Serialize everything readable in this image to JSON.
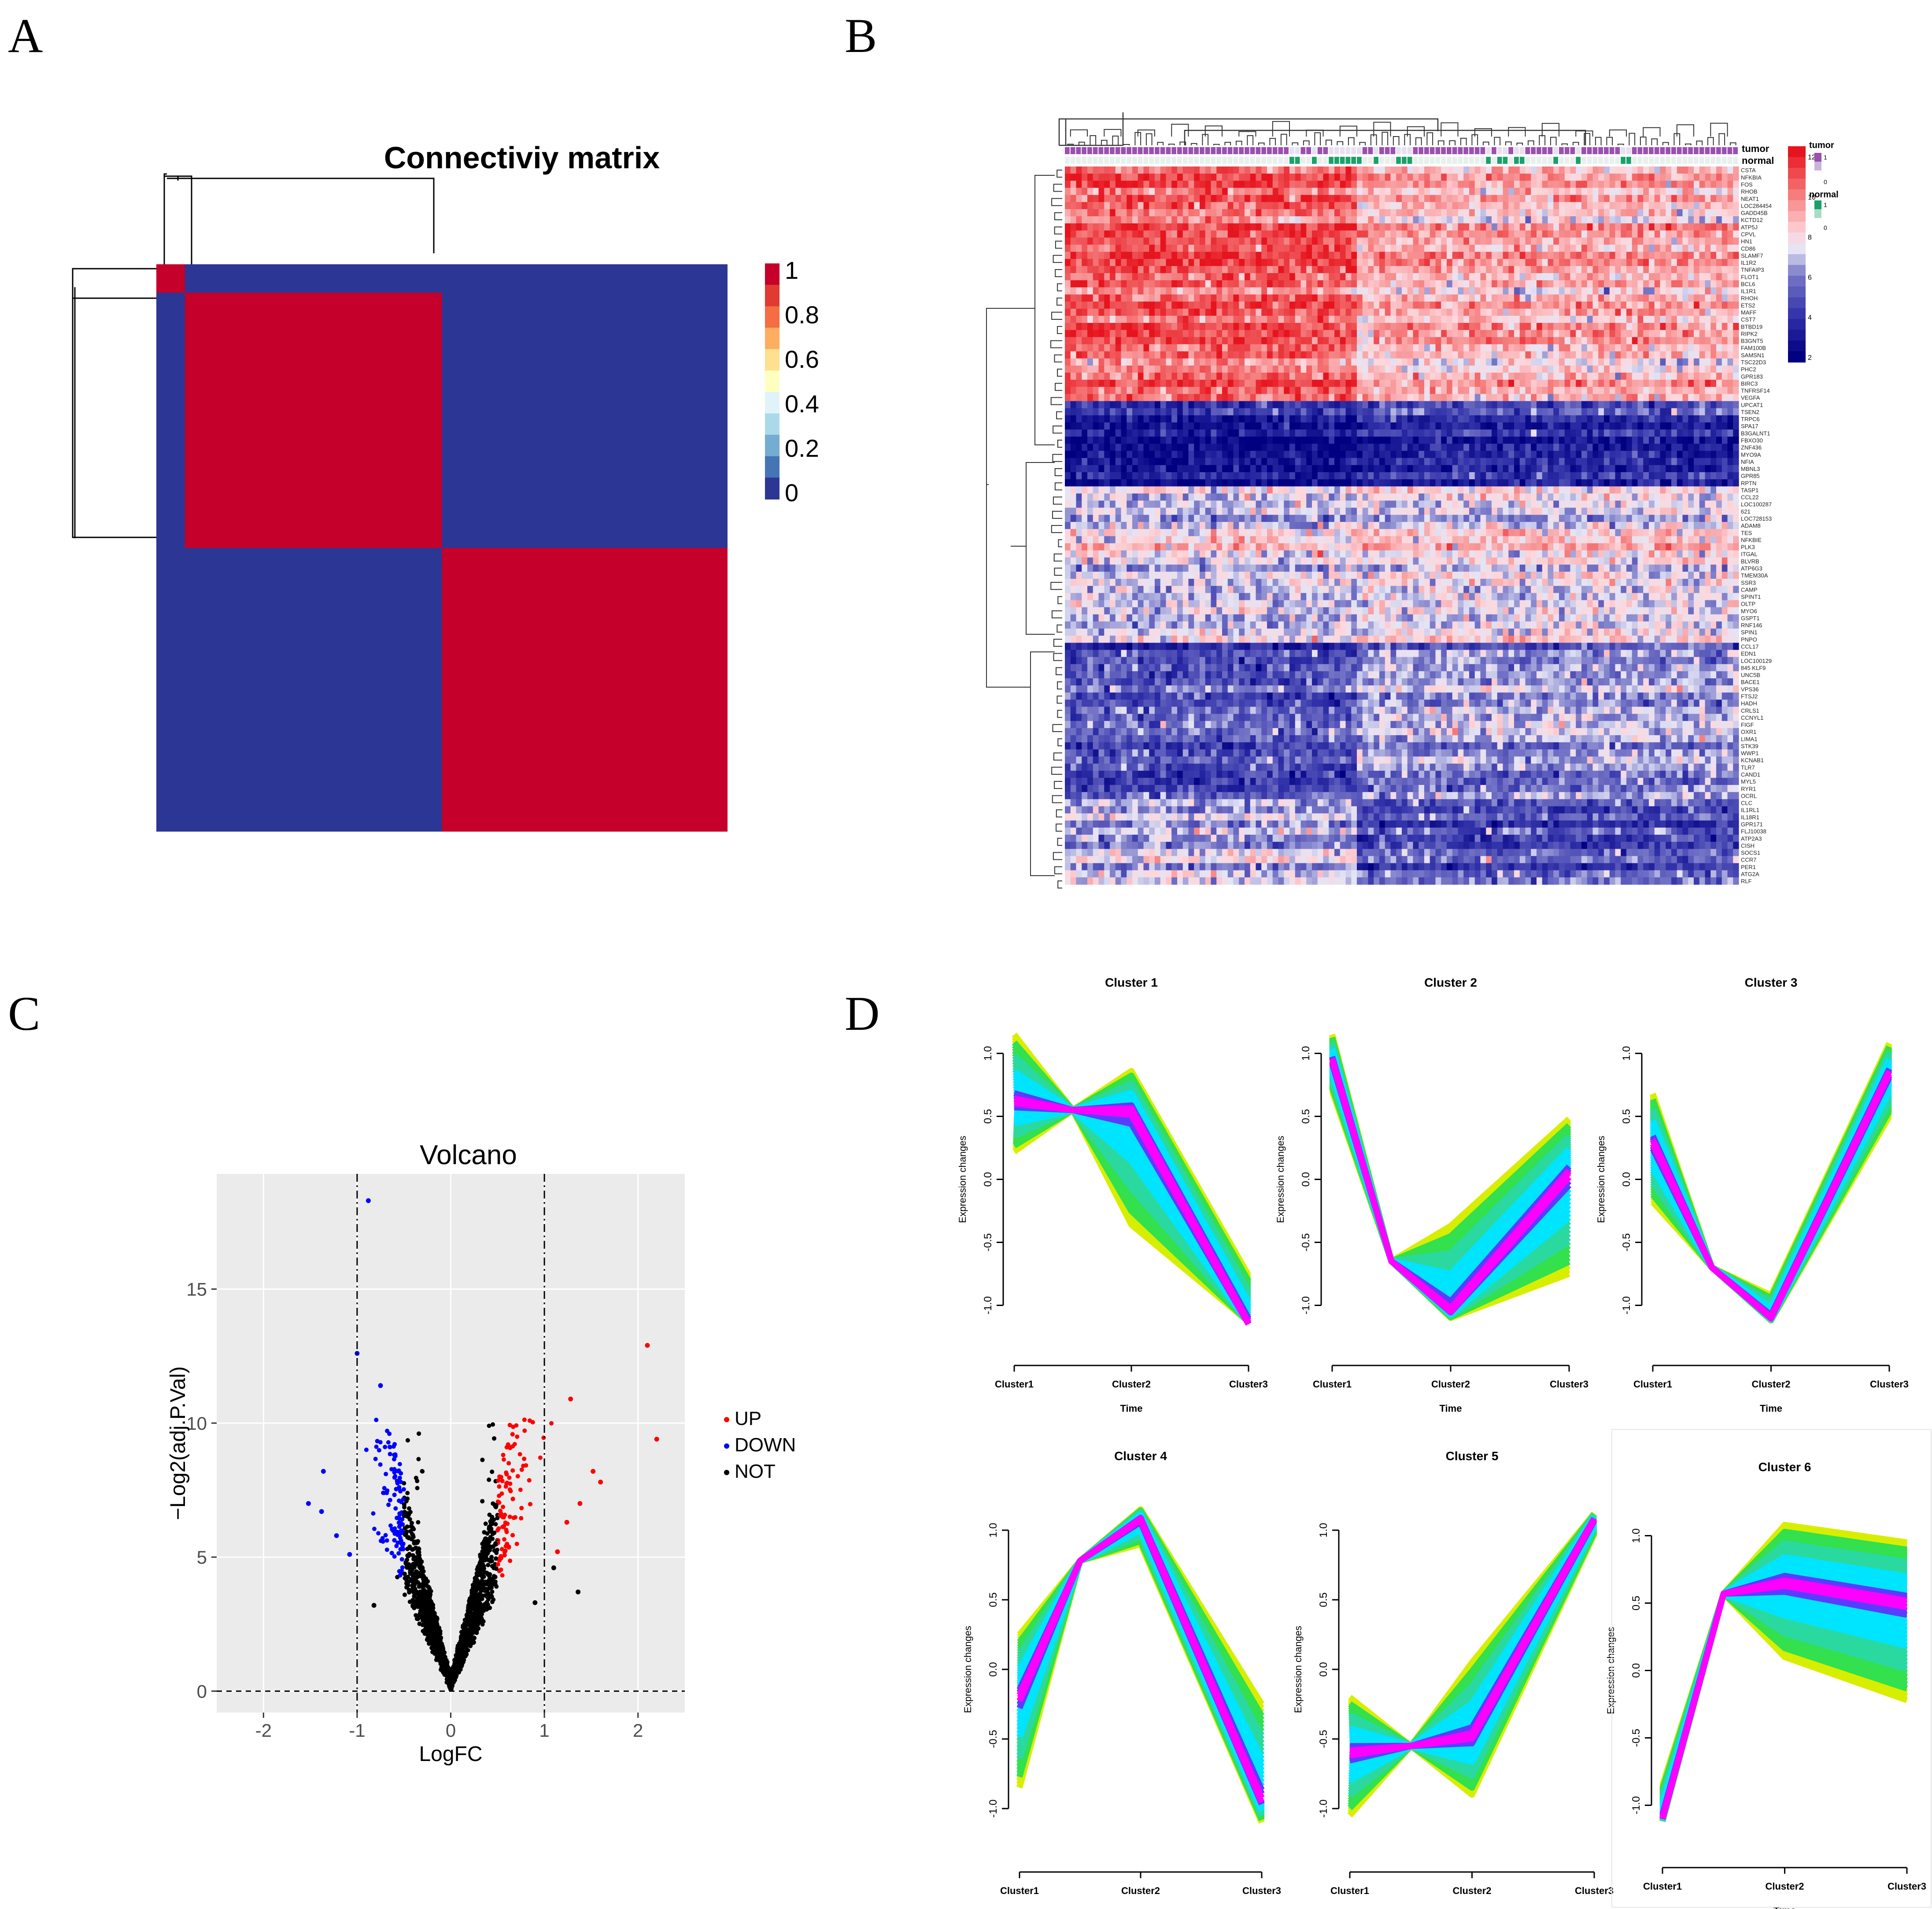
{
  "panel_letters": [
    "A",
    "B",
    "C",
    "D"
  ],
  "chart_data": [
    {
      "id": "A",
      "type": "heatmap",
      "title": "Connectiviy matrix",
      "matrix_blocks": [
        {
          "rows": [
            0,
            1
          ],
          "cols": [
            0,
            1
          ],
          "value": 1
        },
        {
          "rows": [
            1,
            10
          ],
          "cols": [
            1,
            10
          ],
          "value": 1
        },
        {
          "rows": [
            10,
            20
          ],
          "cols": [
            10,
            20
          ],
          "value": 1
        }
      ],
      "matrix_size": 20,
      "colorbar": {
        "ticks": [
          "1",
          "0.8",
          "0.6",
          "0.4",
          "0.2",
          "0"
        ],
        "colors": [
          "#c5002a",
          "#e03a32",
          "#f46d43",
          "#fdae61",
          "#fee090",
          "#ffffbf",
          "#e0f3f8",
          "#abd9e9",
          "#74add1",
          "#4575b4",
          "#2c3694"
        ]
      }
    },
    {
      "id": "B",
      "type": "heatmap",
      "annotation_tracks": [
        "tumor",
        "normal"
      ],
      "legend": {
        "scale_ticks": [
          "12",
          "10",
          "8",
          "6",
          "4",
          "2"
        ],
        "tumor_ticks": [
          "1",
          "0"
        ],
        "normal_ticks": [
          "1",
          "0"
        ],
        "tumor_title": "tumor",
        "normal_title": "normal",
        "tumor_color": "#9b4fb0",
        "normal_color": "#19a16a"
      },
      "genes": [
        "CSTA",
        "NFKBIA",
        "FOS",
        "RHOB",
        "NEAT1",
        "LOC284454",
        "GADD45B",
        "KCTD12",
        "ATP5J",
        "CPVL",
        "HN1",
        "CD86",
        "SLAMF7",
        "IL1R2",
        "TNFAIP3",
        "FLOT1",
        "BCL6",
        "IL1R1",
        "RHOH",
        "ETS2",
        "MAFF",
        "CST7",
        "BTBD19",
        "RIPK2",
        "B3GNT5",
        "FAM100B",
        "SAMSN1",
        "TSC22D3",
        "PHC2",
        "GPR183",
        "BIRC3",
        "TNFRSF14",
        "VEGFA",
        "UPCAT1",
        "TSEN2",
        "TRPC6",
        "SPA17",
        "B3GALNT1",
        "FBXO30",
        "ZNF436",
        "MYO9A",
        "NFIA",
        "MBNL3",
        "GPR85",
        "RPTN",
        "TASP1",
        "CCL22",
        "LOC100287",
        "621",
        "LOC728153",
        "ADAM8",
        "TES",
        "NFKBIE",
        "PLK3",
        "ITGAL",
        "BLVRB",
        "ATP6G3",
        "TMEM30A",
        "SSR3",
        "CAMP",
        "SPINT1",
        "OLTP",
        "MYO6",
        "GSPT1",
        "RNF146",
        "SPIN1",
        "PNPO",
        "CCL17",
        "EDN1",
        "LOC100129",
        "845 KLF9",
        "UNC5B",
        "BACE1",
        "VPS36",
        "FTSJ2",
        "HADH",
        "CRLS1",
        "CCNYL1",
        "FIGF",
        "OXR1",
        "LIMA1",
        "STK39",
        "WWP1",
        "KCNAB1",
        "TLR7",
        "CAND1",
        "MYL5",
        "RYR1",
        "OCRL",
        "CLC",
        "IL1RL1",
        "IL18R1",
        "GPR171",
        "FLJ10038",
        "ATP2A3",
        "CISH",
        "SOCS1",
        "CCR7",
        "PER1",
        "ATG2A",
        "RLF"
      ],
      "row_blocks": [
        {
          "rows": 33,
          "left": 10.5,
          "right": 8.8
        },
        {
          "rows": 12,
          "left": 3.2,
          "right": 4.0
        },
        {
          "rows": 22,
          "left": 7.2,
          "right": 7.6
        },
        {
          "rows": 22,
          "left": 4.8,
          "right": 6.2
        },
        {
          "rows": 12,
          "left": 6.8,
          "right": 5.0
        }
      ],
      "n_columns": 120,
      "normal_columns": [
        40,
        41,
        44,
        47,
        48,
        49,
        50,
        51,
        52,
        55,
        59,
        60,
        61,
        75,
        77,
        78,
        80,
        81,
        87,
        91,
        99,
        100
      ]
    },
    {
      "id": "C",
      "type": "scatter",
      "title": "Volcano",
      "xlabel": "LogFC",
      "ylabel": "−Log2(adj.P.Val)",
      "xlim": [
        -2.5,
        2.5
      ],
      "ylim": [
        -0.8,
        19.3
      ],
      "xticks": [
        "-2",
        "-1",
        "0",
        "1",
        "2"
      ],
      "yticks": [
        "0",
        "5",
        "10",
        "15"
      ],
      "vlines": [
        -1,
        1
      ],
      "hline": 0,
      "legend": [
        {
          "label": "UP",
          "color": "#ff0000"
        },
        {
          "label": "DOWN",
          "color": "#0000ff"
        },
        {
          "label": "NOT",
          "color": "#000000"
        }
      ],
      "outliers": {
        "DOWN": [
          [
            -0.88,
            18.3
          ],
          [
            -1.0,
            12.6
          ],
          [
            -0.75,
            11.4
          ],
          [
            -1.52,
            7.0
          ],
          [
            -1.38,
            6.7
          ],
          [
            -1.22,
            5.8
          ],
          [
            -1.08,
            5.1
          ],
          [
            -1.36,
            8.2
          ]
        ],
        "UP": [
          [
            2.1,
            12.9
          ],
          [
            2.2,
            9.4
          ],
          [
            1.28,
            10.9
          ],
          [
            1.6,
            7.8
          ],
          [
            1.52,
            8.2
          ],
          [
            1.24,
            6.3
          ],
          [
            1.14,
            5.2
          ],
          [
            1.38,
            7.0
          ]
        ],
        "NOT": [
          [
            1.36,
            3.7
          ],
          [
            0.9,
            3.3
          ],
          [
            -0.82,
            3.2
          ],
          [
            1.1,
            4.6
          ]
        ]
      }
    },
    {
      "id": "D",
      "type": "line",
      "xlabel": "Time",
      "ylabel": "Expression changes",
      "categories": [
        "Cluster1",
        "Cluster2",
        "Cluster3"
      ],
      "yticks": [
        "1.0",
        "0.5",
        "0.0",
        "-0.5",
        "-1.0"
      ],
      "clusters": [
        {
          "title": "Cluster 1",
          "core": [
            0.62,
            0.55,
            -1.15
          ],
          "mid": 0.55,
          "top": [
            1.15,
            0.86,
            -0.76
          ],
          "bottom": [
            0.22,
            -0.36,
            -1.13
          ]
        },
        {
          "title": "Cluster 2",
          "core": [
            0.95,
            -1.05,
            0.05
          ],
          "mid": -0.65,
          "top": [
            1.15,
            -0.37,
            0.48
          ],
          "bottom": [
            0.7,
            -1.1,
            -0.75
          ]
        },
        {
          "title": "Cluster 3",
          "core": [
            0.3,
            -1.1,
            0.85
          ],
          "mid": -0.7,
          "top": [
            0.68,
            -0.92,
            1.08
          ],
          "bottom": [
            -0.18,
            -1.12,
            0.5
          ]
        },
        {
          "title": "Cluster 4",
          "core": [
            -0.2,
            1.08,
            -0.95
          ],
          "mid": 0.78,
          "top": [
            0.25,
            1.15,
            -0.25
          ],
          "bottom": [
            -0.85,
            0.9,
            -1.1
          ]
        },
        {
          "title": "Cluster 5",
          "core": [
            -0.6,
            -0.48,
            1.08
          ],
          "mid": -0.55,
          "top": [
            -0.2,
            0.05,
            1.12
          ],
          "bottom": [
            -1.05,
            -0.9,
            0.97
          ]
        },
        {
          "title": "Cluster 6",
          "core": [
            -1.1,
            0.65,
            0.5
          ],
          "mid": 0.57,
          "top": [
            -0.85,
            1.08,
            0.95
          ],
          "bottom": [
            -1.12,
            0.1,
            -0.22
          ]
        }
      ]
    }
  ]
}
